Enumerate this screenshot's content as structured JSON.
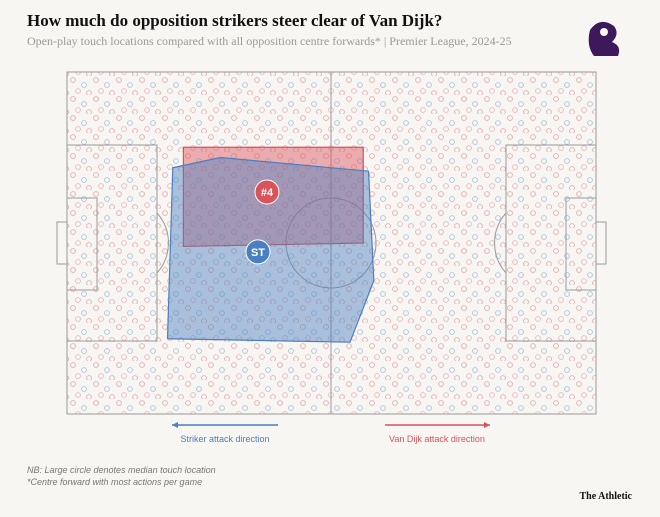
{
  "chart_data": {
    "type": "pitch-map",
    "title": "How much do opposition strikers steer clear of Van Dijk?",
    "subtitle": "Open-play touch locations compared with all opposition centre forwards* | Premier League, 2024-25",
    "xlim": [
      0,
      100
    ],
    "ylim": [
      0,
      100
    ],
    "series": [
      {
        "name": "#4",
        "color": "#d9535a",
        "hull_x": [
          22,
          56,
          56,
          22
        ],
        "hull_y": [
          22,
          22,
          50,
          51
        ],
        "median": [
          37.8,
          35.1
        ]
      },
      {
        "name": "ST",
        "color": "#4a7fc1",
        "hull_x": [
          20,
          29,
          57,
          58,
          53.5,
          19
        ],
        "hull_y": [
          28,
          25,
          29,
          61,
          79,
          78
        ],
        "median": [
          36.1,
          52.6
        ]
      }
    ],
    "annotations": [
      "Striker attack direction",
      "Van Dijk attack direction"
    ],
    "notes": [
      "NB: Large circle denotes median touch location",
      "*Centre forward with most actions per game"
    ],
    "source": "The Athletic"
  }
}
